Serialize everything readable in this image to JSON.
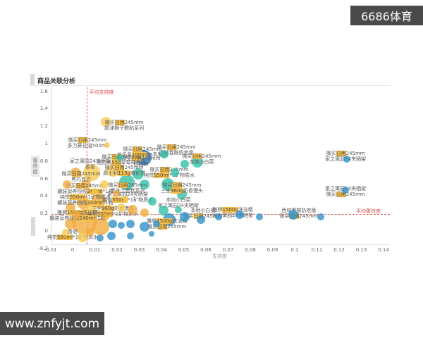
{
  "watermarks": {
    "top_right": "6686体育",
    "bottom_left": "www.znfyjt.com"
  },
  "chart_data": {
    "type": "scatter",
    "title": "商品关联分析",
    "xlabel": "支持度",
    "ylabel": "置信度",
    "xlim": [
      -0.01,
      0.14
    ],
    "ylim": [
      -0.2,
      1.6
    ],
    "grid": false,
    "legend": "none",
    "x_ticks": [
      "-0.01",
      "0",
      "0.01",
      "0.02",
      "0.03",
      "0.04",
      "0.05",
      "0.06",
      "0.07",
      "0.08",
      "0.09",
      "0.1",
      "0.11",
      "0.12",
      "0.13",
      "0.14"
    ],
    "y_ticks": [
      "-0.2",
      "0",
      "0.2",
      "0.4",
      "0.6",
      "0.8",
      "1",
      "1.2",
      "1.4",
      "1.6"
    ],
    "reference_lines": {
      "avg_support": {
        "value": 0.0065,
        "label": "平均支持度",
        "color": "#d9534f"
      },
      "avg_confidence": {
        "value": 0.19,
        "label": "平均置信度",
        "color": "#d9534f"
      }
    },
    "colors": {
      "orange": "#f2a93b",
      "yellow": "#f8c94e",
      "teal": "#2ebfa5",
      "blue": "#2e8fc9",
      "darkblue": "#1e71b8",
      "highlight": "#f7c04a"
    },
    "highlight_tokens": [
      "日用",
      "100ml",
      "550ml",
      "240ml",
      "1500g",
      "960g",
      "115g",
      "55g"
    ],
    "bubbles": [
      {
        "x": 0.0149,
        "y": 1.25,
        "r": 7,
        "c": "yellow"
      },
      {
        "x": 0.0156,
        "y": 0.98,
        "r": 4,
        "c": "yellow"
      },
      {
        "x": 0.0213,
        "y": 0.84,
        "r": 5,
        "c": "teal"
      },
      {
        "x": 0.0321,
        "y": 0.84,
        "r": 11,
        "c": "darkblue"
      },
      {
        "x": 0.0413,
        "y": 0.88,
        "r": 6,
        "c": "teal"
      },
      {
        "x": 0.0562,
        "y": 0.79,
        "r": 8,
        "c": "teal"
      },
      {
        "x": 0.0505,
        "y": 0.77,
        "r": 6,
        "c": "teal"
      },
      {
        "x": 0.1235,
        "y": 0.82,
        "r": 5,
        "c": "blue"
      },
      {
        "x": 0.1229,
        "y": 0.47,
        "r": 5,
        "c": "blue"
      },
      {
        "x": 0.0181,
        "y": 0.69,
        "r": 9,
        "c": "yellow"
      },
      {
        "x": 0.0086,
        "y": 0.67,
        "r": 12,
        "c": "yellow"
      },
      {
        "x": 0.0013,
        "y": 0.67,
        "r": 7,
        "c": "orange"
      },
      {
        "x": -0.0025,
        "y": 0.53,
        "r": 6,
        "c": "orange"
      },
      {
        "x": 0.006,
        "y": 0.53,
        "r": 7,
        "c": "orange"
      },
      {
        "x": 0.0143,
        "y": 0.53,
        "r": 6,
        "c": "yellow"
      },
      {
        "x": 0.0244,
        "y": 0.56,
        "r": 11,
        "c": "teal"
      },
      {
        "x": 0.0295,
        "y": 0.65,
        "r": 8,
        "c": "teal"
      },
      {
        "x": 0.0324,
        "y": 0.53,
        "r": 7,
        "c": "teal"
      },
      {
        "x": 0.0429,
        "y": 0.53,
        "r": 9,
        "c": "teal"
      },
      {
        "x": 0.0492,
        "y": 0.42,
        "r": 7,
        "c": "teal"
      },
      {
        "x": 0.0359,
        "y": 0.34,
        "r": 6,
        "c": "teal"
      },
      {
        "x": 0.0117,
        "y": 0.35,
        "r": 10,
        "c": "orange"
      },
      {
        "x": 0.0048,
        "y": 0.32,
        "r": 9,
        "c": "orange"
      },
      {
        "x": -0.001,
        "y": 0.27,
        "r": 7,
        "c": "orange"
      },
      {
        "x": 0.0086,
        "y": 0.23,
        "r": 8,
        "c": "yellow"
      },
      {
        "x": 0.0159,
        "y": 0.24,
        "r": 7,
        "c": "orange"
      },
      {
        "x": 0.0219,
        "y": 0.27,
        "r": 6,
        "c": "yellow"
      },
      {
        "x": 0.027,
        "y": 0.24,
        "r": 7,
        "c": "orange"
      },
      {
        "x": 0.0324,
        "y": 0.21,
        "r": 6,
        "c": "orange"
      },
      {
        "x": 0.041,
        "y": 0.23,
        "r": 7,
        "c": "teal"
      },
      {
        "x": 0.0476,
        "y": 0.24,
        "r": 5,
        "c": "teal"
      },
      {
        "x": 0.0054,
        "y": 0.105,
        "r": 18,
        "c": "orange"
      },
      {
        "x": 0.0127,
        "y": 0.05,
        "r": 12,
        "c": "orange"
      },
      {
        "x": -0.001,
        "y": 0.08,
        "r": 8,
        "c": "orange"
      },
      {
        "x": -0.0032,
        "y": -0.016,
        "r": 5,
        "c": "yellow"
      },
      {
        "x": 0.0044,
        "y": -0.07,
        "r": 7,
        "c": "yellow"
      },
      {
        "x": 0.0181,
        "y": 0.08,
        "r": 6,
        "c": "blue"
      },
      {
        "x": 0.0219,
        "y": 0.065,
        "r": 5,
        "c": "blue"
      },
      {
        "x": 0.026,
        "y": 0.08,
        "r": 6,
        "c": "blue"
      },
      {
        "x": 0.0324,
        "y": 0.05,
        "r": 7,
        "c": "blue"
      },
      {
        "x": 0.0378,
        "y": 0.08,
        "r": 5,
        "c": "blue"
      },
      {
        "x": 0.0435,
        "y": 0.13,
        "r": 9,
        "c": "blue"
      },
      {
        "x": 0.0505,
        "y": 0.16,
        "r": 7,
        "c": "blue"
      },
      {
        "x": 0.0578,
        "y": 0.13,
        "r": 6,
        "c": "blue"
      },
      {
        "x": 0.0657,
        "y": 0.16,
        "r": 5,
        "c": "blue"
      },
      {
        "x": 0.0752,
        "y": 0.185,
        "r": 6,
        "c": "blue"
      },
      {
        "x": 0.0841,
        "y": 0.16,
        "r": 5,
        "c": "blue"
      },
      {
        "x": 0.0994,
        "y": 0.185,
        "r": 7,
        "c": "blue"
      },
      {
        "x": 0.1117,
        "y": 0.16,
        "r": 5,
        "c": "blue"
      },
      {
        "x": 0.046,
        "y": 0.67,
        "r": 6,
        "c": "teal"
      },
      {
        "x": 0.0197,
        "y": 0.43,
        "r": 5,
        "c": "orange"
      },
      {
        "x": 0.0238,
        "y": 0.37,
        "r": 4,
        "c": "yellow"
      },
      {
        "x": 0.0149,
        "y": 0.16,
        "r": 5,
        "c": "orange"
      },
      {
        "x": 0.0102,
        "y": 0.45,
        "r": 5,
        "c": "yellow"
      },
      {
        "x": 0.0016,
        "y": 0.185,
        "r": 6,
        "c": "orange"
      },
      {
        "x": 0.0079,
        "y": -0.016,
        "r": 6,
        "c": "orange"
      },
      {
        "x": 0.0124,
        "y": -0.08,
        "r": 5,
        "c": "blue"
      },
      {
        "x": 0.0175,
        "y": -0.056,
        "r": 6,
        "c": "blue"
      },
      {
        "x": 0.026,
        "y": -0.056,
        "r": 5,
        "c": "blue"
      },
      {
        "x": 0.0356,
        "y": -0.03,
        "r": 4,
        "c": "blue"
      }
    ],
    "labels": [
      {
        "x": 0.0232,
        "y": 1.21,
        "lines": [
          "微买日用245mm",
          "超津狮子敷贴系列"
        ]
      },
      {
        "x": 0.0067,
        "y": 1.01,
        "lines": [
          "微买日用245mm",
          "多力葵花油500ml"
        ]
      },
      {
        "x": 0.0314,
        "y": 0.9,
        "lines": [
          "微买日用245mm",
          "养乐多100ml*5乳酸菌"
        ]
      },
      {
        "x": 0.0467,
        "y": 0.93,
        "lines": [
          "微买日用245mm",
          "西域春酸奶疙瘩"
        ]
      },
      {
        "x": 0.0581,
        "y": 0.82,
        "lines": [
          "微买日用245mm",
          "本地小白菜"
        ]
      },
      {
        "x": 0.0308,
        "y": 0.8,
        "lines": [
          "微买日用245mm",
          "西红柿"
        ]
      },
      {
        "x": 0.1229,
        "y": 0.855,
        "lines": [
          "微买日用245mm",
          "家之寓园24夹晒架"
        ]
      },
      {
        "x": 0.1229,
        "y": 0.452,
        "lines": [
          "家之寓园24夹晒架",
          "微买日用245mm"
        ]
      },
      {
        "x": 0.0079,
        "y": 0.766,
        "lines": [
          "家之寓园24夹晒架",
          "香皂"
        ]
      },
      {
        "x": 0.0038,
        "y": 0.62,
        "lines": [
          "微买日用245mm",
          "黑巧克力"
        ]
      },
      {
        "x": 0.0219,
        "y": 0.815,
        "lines": [
          "微买日用245mm",
          "格力高55g草莓味百奇"
        ]
      },
      {
        "x": 0.0232,
        "y": 0.694,
        "lines": [
          "微买日用245mm",
          "嘉士利115g威化饼"
        ]
      },
      {
        "x": 0.0435,
        "y": 0.669,
        "lines": [
          "微买日用245mm",
          "纯悦550ml*1矿物质水"
        ]
      },
      {
        "x": 0.0492,
        "y": 0.492,
        "lines": [
          "微买日用245mm",
          "三全960g奶香馒头"
        ]
      },
      {
        "x": 0.0248,
        "y": 0.492,
        "lines": [
          "微买日用245mm",
          "黑芝士蛋糕系列"
        ]
      },
      {
        "x": 0.0476,
        "y": 0.323,
        "lines": [
          "本地小白菜",
          "家之寓园24夹晒架"
        ]
      },
      {
        "x": 0.0587,
        "y": 0.202,
        "lines": [
          "本地小白菜",
          "微买日用245mm"
        ]
      },
      {
        "x": 0.0721,
        "y": 0.21,
        "lines": [
          "雕牌1500g洗洁精",
          "家之寓园24夹晒架"
        ]
      },
      {
        "x": 0.1019,
        "y": 0.2,
        "lines": [
          "西域春酸奶疙瘩",
          "微买日用245mm"
        ]
      },
      {
        "x": 0.0057,
        "y": 0.484,
        "lines": [
          "微买日用245mm",
          "罐装营养快线240ml*1箱"
        ]
      },
      {
        "x": 0.0057,
        "y": 0.355,
        "lines": [
          "纯悦550ml*1矿物质水",
          "罐装营养快线240ml*1箱"
        ]
      },
      {
        "x": 0.0248,
        "y": 0.387,
        "lines": [
          "家之寓园24夹晒架",
          "纯悦550ml*1矿物质水"
        ]
      },
      {
        "x": 0.0181,
        "y": 0.226,
        "lines": [
          "三全960g奶香馒头",
          "纯悦550ml*1矿物质水"
        ]
      },
      {
        "x": 0.0022,
        "y": 0.177,
        "lines": [
          "雕牌1500g洗洁精",
          "罐装营养快线240ml*1箱"
        ]
      },
      {
        "x": 0.0,
        "y": -0.04,
        "lines": [
          "香皂",
          "纯悦550ml*1矿物质水"
        ]
      },
      {
        "x": 0.0425,
        "y": 0.081,
        "lines": [
          "雕牌1500g洗洁精",
          "微买日用245mm"
        ]
      }
    ]
  }
}
